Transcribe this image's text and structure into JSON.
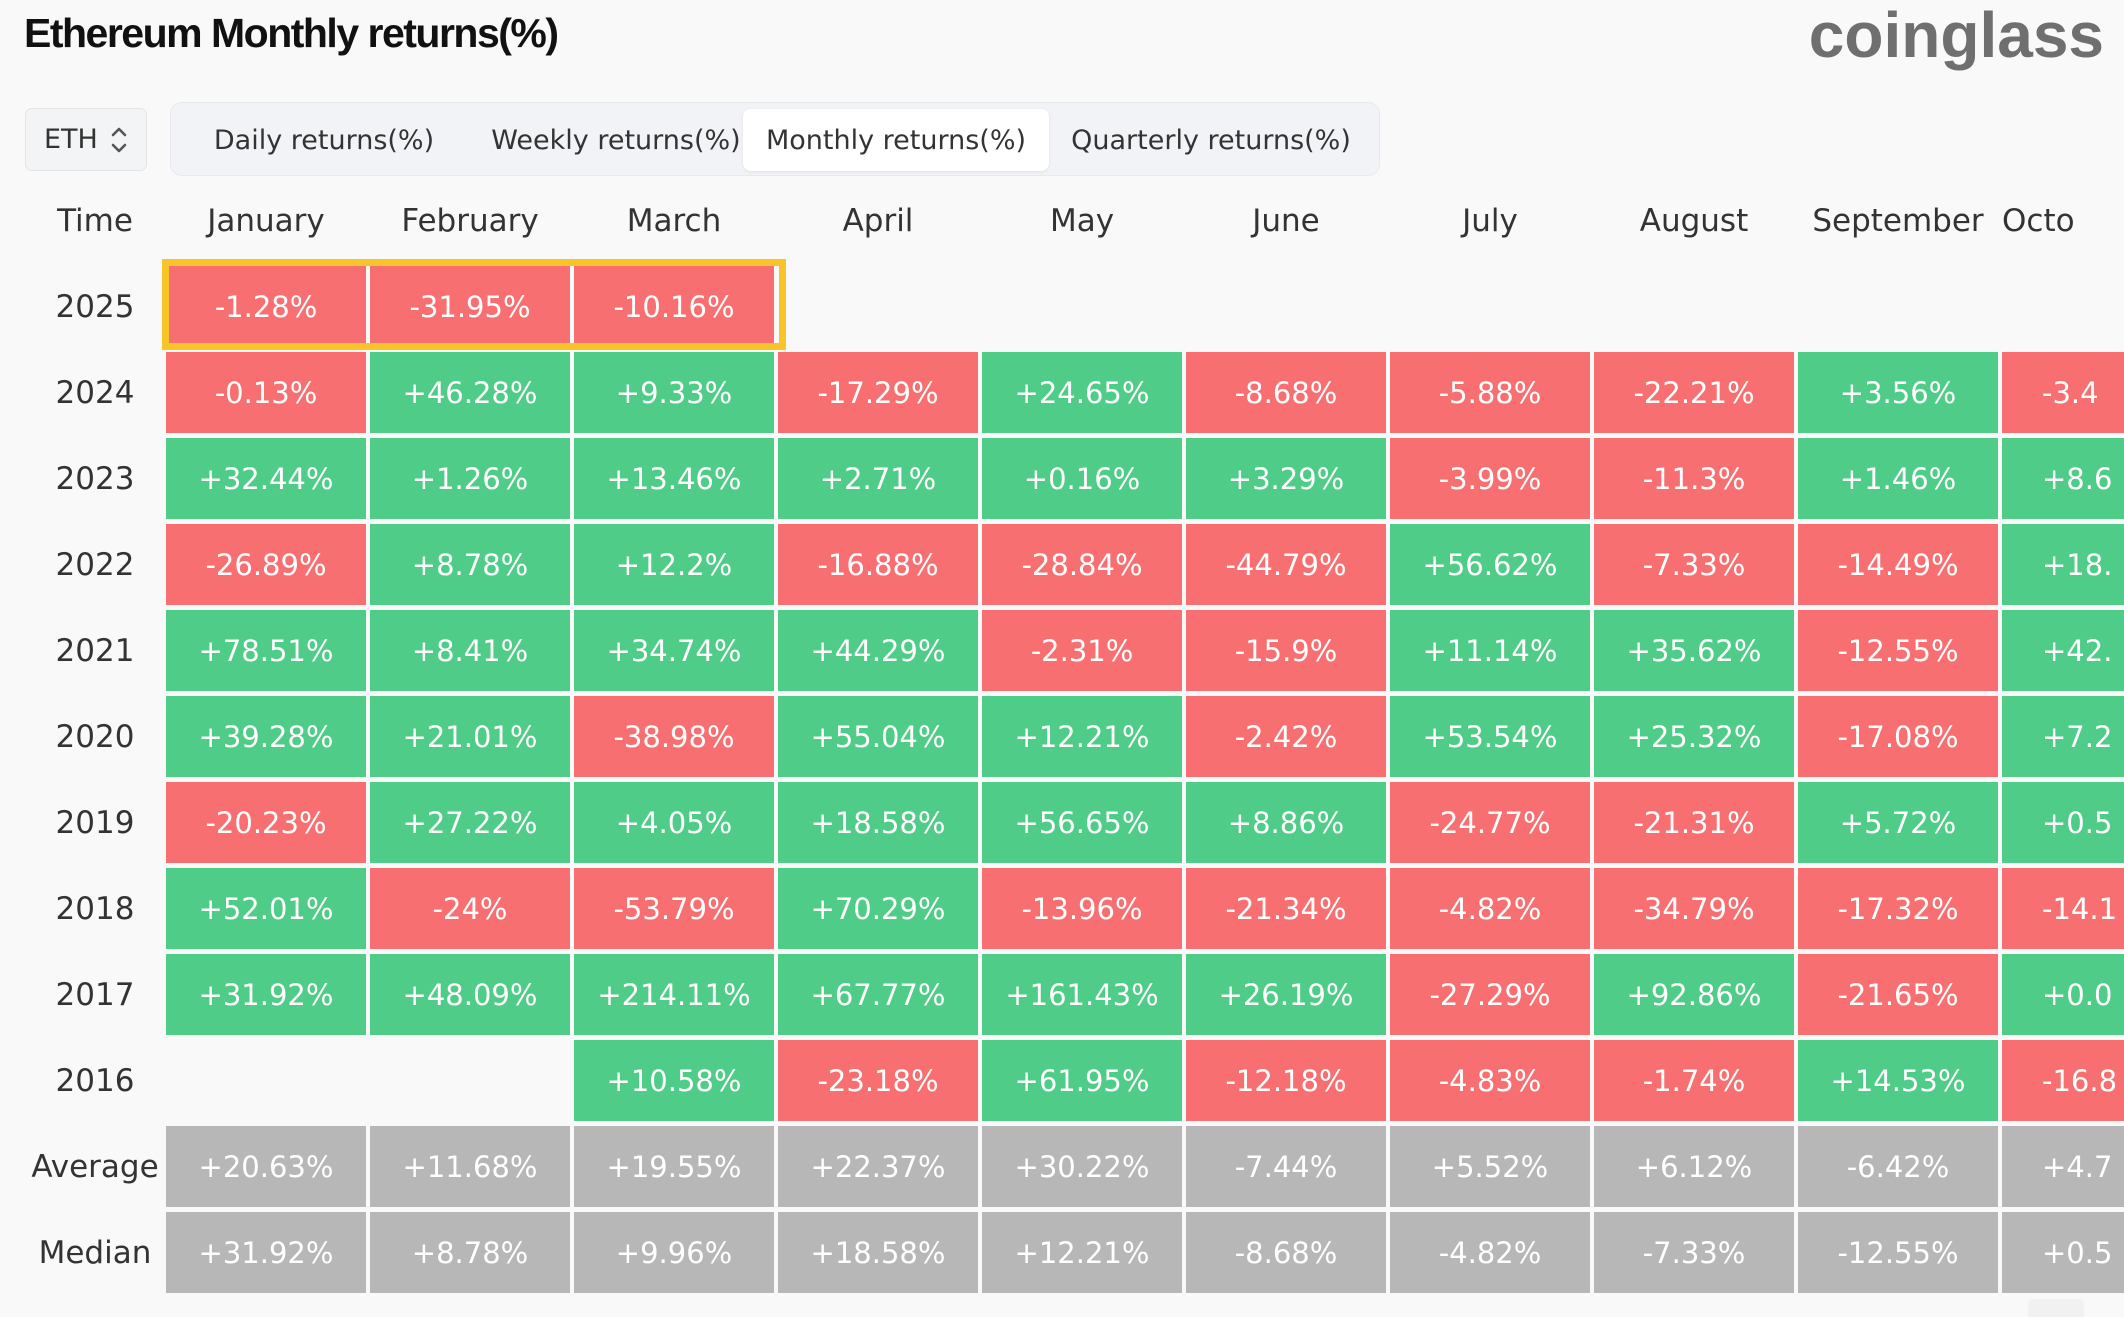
{
  "page": {
    "title": "Ethereum Monthly returns(%)",
    "logo_text": "coinglass"
  },
  "asset_selector": {
    "value": "ETH",
    "icon": "updown-chevron-icon"
  },
  "tabs": [
    {
      "label": "Daily returns(%)",
      "active": false
    },
    {
      "label": "Weekly returns(%)",
      "active": false
    },
    {
      "label": "Monthly returns(%)",
      "active": true
    },
    {
      "label": "Quarterly returns(%)",
      "active": false
    }
  ],
  "colors": {
    "positive": "#4fcc87",
    "negative": "#f86f72",
    "stat": "#b7b7b7",
    "highlight": "#f8c42a"
  },
  "table": {
    "time_header": "Time",
    "columns": [
      "January",
      "February",
      "March",
      "April",
      "May",
      "June",
      "July",
      "August",
      "September",
      "Octo"
    ],
    "rows": [
      {
        "label": "2025",
        "values": [
          "-1.28%",
          "-31.95%",
          "-10.16%",
          "",
          "",
          "",
          "",
          "",
          "",
          ""
        ]
      },
      {
        "label": "2024",
        "values": [
          "-0.13%",
          "+46.28%",
          "+9.33%",
          "-17.29%",
          "+24.65%",
          "-8.68%",
          "-5.88%",
          "-22.21%",
          "+3.56%",
          "-3.4"
        ]
      },
      {
        "label": "2023",
        "values": [
          "+32.44%",
          "+1.26%",
          "+13.46%",
          "+2.71%",
          "+0.16%",
          "+3.29%",
          "-3.99%",
          "-11.3%",
          "+1.46%",
          "+8.6"
        ]
      },
      {
        "label": "2022",
        "values": [
          "-26.89%",
          "+8.78%",
          "+12.2%",
          "-16.88%",
          "-28.84%",
          "-44.79%",
          "+56.62%",
          "-7.33%",
          "-14.49%",
          "+18."
        ]
      },
      {
        "label": "2021",
        "values": [
          "+78.51%",
          "+8.41%",
          "+34.74%",
          "+44.29%",
          "-2.31%",
          "-15.9%",
          "+11.14%",
          "+35.62%",
          "-12.55%",
          "+42."
        ]
      },
      {
        "label": "2020",
        "values": [
          "+39.28%",
          "+21.01%",
          "-38.98%",
          "+55.04%",
          "+12.21%",
          "-2.42%",
          "+53.54%",
          "+25.32%",
          "-17.08%",
          "+7.2"
        ]
      },
      {
        "label": "2019",
        "values": [
          "-20.23%",
          "+27.22%",
          "+4.05%",
          "+18.58%",
          "+56.65%",
          "+8.86%",
          "-24.77%",
          "-21.31%",
          "+5.72%",
          "+0.5"
        ]
      },
      {
        "label": "2018",
        "values": [
          "+52.01%",
          "-24%",
          "-53.79%",
          "+70.29%",
          "-13.96%",
          "-21.34%",
          "-4.82%",
          "-34.79%",
          "-17.32%",
          "-14.1"
        ]
      },
      {
        "label": "2017",
        "values": [
          "+31.92%",
          "+48.09%",
          "+214.11%",
          "+67.77%",
          "+161.43%",
          "+26.19%",
          "-27.29%",
          "+92.86%",
          "-21.65%",
          "+0.0"
        ]
      },
      {
        "label": "2016",
        "values": [
          "",
          "",
          "+10.58%",
          "-23.18%",
          "+61.95%",
          "-12.18%",
          "-4.83%",
          "-1.74%",
          "+14.53%",
          "-16.8"
        ]
      }
    ],
    "stats": [
      {
        "label": "Average",
        "values": [
          "+20.63%",
          "+11.68%",
          "+19.55%",
          "+22.37%",
          "+30.22%",
          "-7.44%",
          "+5.52%",
          "+6.12%",
          "-6.42%",
          "+4.7"
        ]
      },
      {
        "label": "Median",
        "values": [
          "+31.92%",
          "+8.78%",
          "+9.96%",
          "+18.58%",
          "+12.21%",
          "-8.68%",
          "-4.82%",
          "-7.33%",
          "-12.55%",
          "+0.5"
        ]
      }
    ],
    "highlighted": {
      "row": "2025",
      "columns": [
        "January",
        "February",
        "March"
      ]
    }
  }
}
